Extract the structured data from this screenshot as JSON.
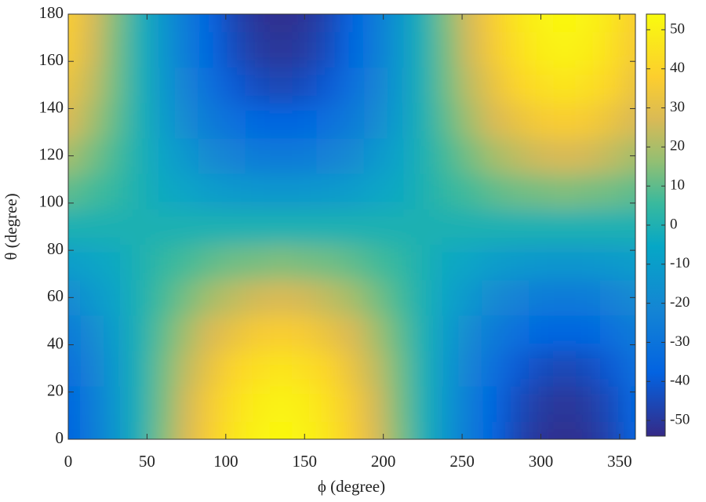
{
  "chart_data": {
    "type": "heatmap",
    "xlabel": "ϕ (degree)",
    "ylabel": "θ (degree)",
    "x": [
      0,
      15,
      30,
      45,
      60,
      75,
      90,
      105,
      120,
      135,
      150,
      165,
      180,
      195,
      210,
      225,
      240,
      255,
      270,
      285,
      300,
      315,
      330,
      345,
      360
    ],
    "y": [
      0,
      15,
      30,
      45,
      60,
      75,
      90,
      105,
      120,
      135,
      150,
      165,
      180
    ],
    "z": [
      [
        -37,
        -27,
        -14,
        0,
        14,
        27,
        37,
        46,
        51,
        53,
        51,
        46,
        37,
        27,
        14,
        0,
        -14,
        -27,
        -37,
        -46,
        -51,
        -53,
        -51,
        -46,
        -37
      ],
      [
        -36,
        -26,
        -13,
        0,
        13,
        26,
        36,
        44,
        49,
        51,
        49,
        44,
        36,
        26,
        13,
        0,
        -13,
        -26,
        -36,
        -44,
        -49,
        -51,
        -49,
        -44,
        -36
      ],
      [
        -32,
        -23,
        -12,
        0,
        12,
        23,
        32,
        40,
        44,
        46,
        44,
        40,
        32,
        23,
        12,
        0,
        -12,
        -23,
        -32,
        -40,
        -44,
        -46,
        -44,
        -40,
        -32
      ],
      [
        -27,
        -19,
        -10,
        0,
        10,
        19,
        27,
        32,
        36,
        37,
        36,
        32,
        27,
        19,
        10,
        0,
        -10,
        -19,
        -27,
        -32,
        -36,
        -37,
        -36,
        -32,
        -27
      ],
      [
        -19,
        -13,
        -7,
        0,
        7,
        13,
        19,
        23,
        26,
        27,
        26,
        23,
        19,
        13,
        7,
        0,
        -7,
        -13,
        -19,
        -23,
        -26,
        -27,
        -26,
        -23,
        -19
      ],
      [
        -10,
        -7,
        -4,
        0,
        4,
        7,
        10,
        12,
        13,
        14,
        13,
        12,
        10,
        7,
        4,
        0,
        -4,
        -7,
        -10,
        -12,
        -13,
        -14,
        -13,
        -12,
        -10
      ],
      [
        0,
        0,
        0,
        0,
        0,
        0,
        0,
        0,
        0,
        0,
        0,
        0,
        0,
        0,
        0,
        0,
        0,
        0,
        0,
        0,
        0,
        0,
        0,
        0,
        0
      ],
      [
        10,
        7,
        4,
        0,
        -4,
        -7,
        -10,
        -12,
        -13,
        -14,
        -13,
        -12,
        -10,
        -7,
        -4,
        0,
        4,
        7,
        10,
        12,
        13,
        14,
        13,
        12,
        10
      ],
      [
        19,
        13,
        7,
        0,
        -7,
        -13,
        -19,
        -23,
        -26,
        -27,
        -26,
        -23,
        -19,
        -13,
        -7,
        0,
        7,
        13,
        19,
        23,
        26,
        27,
        26,
        23,
        19
      ],
      [
        27,
        19,
        10,
        0,
        -10,
        -19,
        -27,
        -32,
        -36,
        -37,
        -36,
        -32,
        -27,
        -19,
        -10,
        0,
        10,
        19,
        27,
        32,
        36,
        37,
        36,
        32,
        27
      ],
      [
        32,
        23,
        12,
        0,
        -12,
        -23,
        -32,
        -40,
        -44,
        -46,
        -44,
        -40,
        -32,
        -23,
        -12,
        0,
        12,
        23,
        32,
        40,
        44,
        46,
        44,
        40,
        32
      ],
      [
        36,
        26,
        13,
        0,
        -13,
        -26,
        -36,
        -44,
        -49,
        -51,
        -49,
        -44,
        -36,
        -26,
        -13,
        0,
        13,
        26,
        36,
        44,
        49,
        51,
        49,
        44,
        36
      ],
      [
        37,
        27,
        14,
        0,
        -14,
        -27,
        -37,
        -46,
        -51,
        -53,
        -51,
        -46,
        -37,
        -27,
        -14,
        0,
        14,
        27,
        37,
        46,
        51,
        53,
        51,
        46,
        37
      ]
    ],
    "xlim": [
      0,
      360
    ],
    "xticks": [
      0,
      50,
      100,
      150,
      200,
      250,
      300,
      350
    ],
    "ylim": [
      0,
      180
    ],
    "yticks": [
      0,
      20,
      40,
      60,
      80,
      100,
      120,
      140,
      160,
      180
    ],
    "colormap": "parula",
    "clim": [
      -54,
      54
    ],
    "colorbar_ticks": [
      -50,
      -40,
      -30,
      -20,
      -10,
      0,
      10,
      20,
      30,
      40,
      50
    ]
  }
}
